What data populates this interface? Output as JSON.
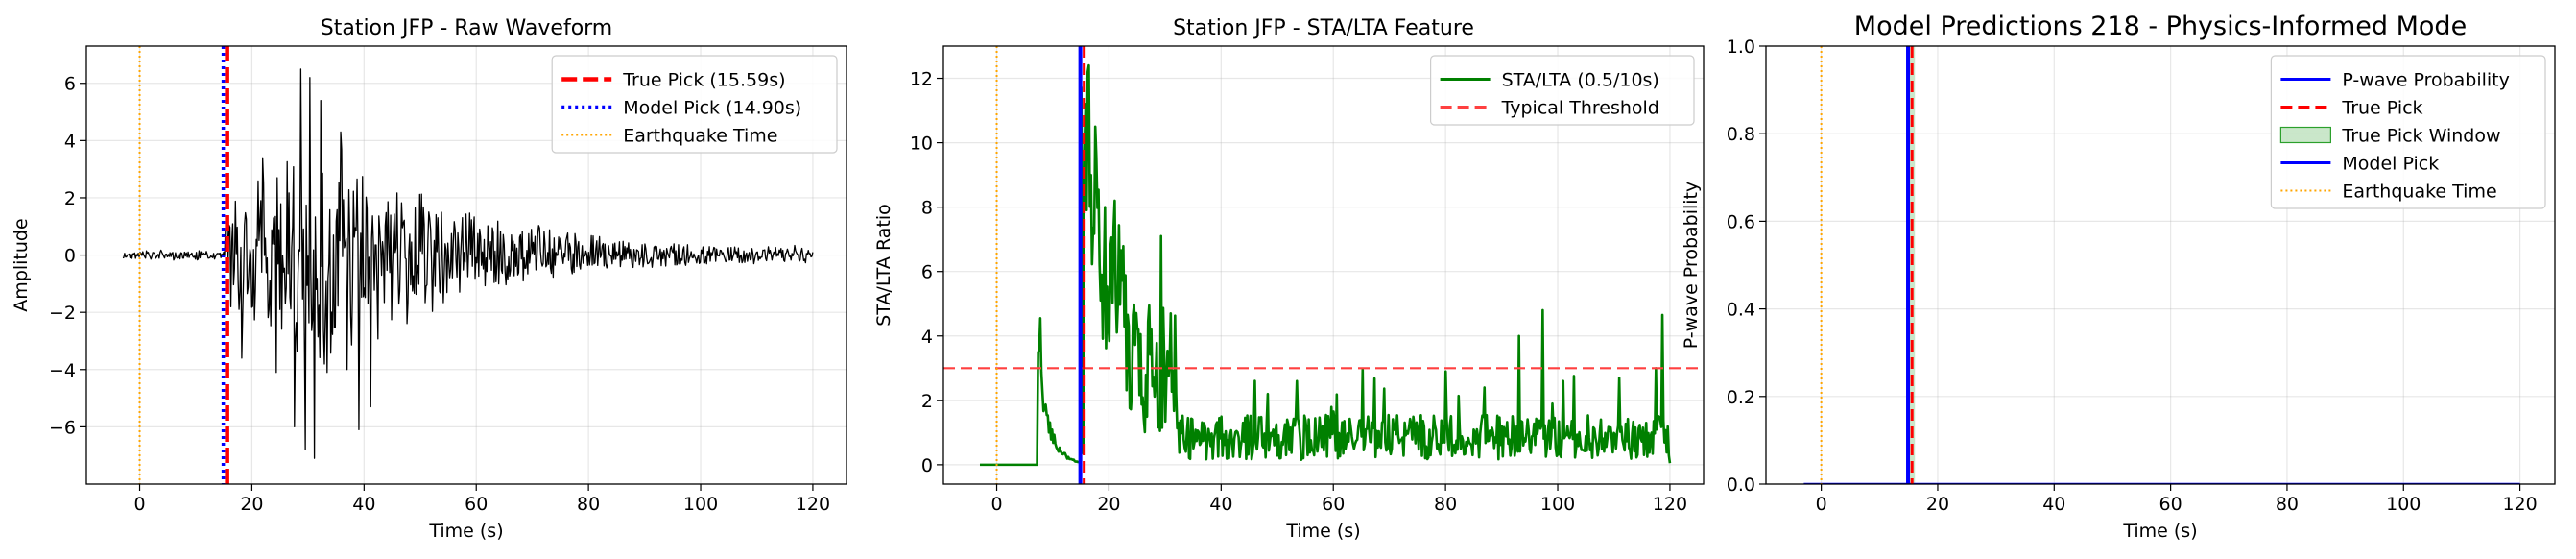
{
  "chart_data": [
    {
      "type": "line",
      "title": "Station JFP - Raw Waveform",
      "xlabel": "Time (s)",
      "ylabel": "Amplitude",
      "xlim": [
        -9.5,
        126
      ],
      "ylim": [
        -8,
        7.3
      ],
      "xticks": [
        0,
        20,
        40,
        60,
        80,
        100,
        120
      ],
      "yticks": [
        -6,
        -4,
        -2,
        0,
        2,
        4,
        6
      ],
      "xtick_labels": [
        "0",
        "20",
        "40",
        "60",
        "80",
        "100",
        "120"
      ],
      "ytick_labels": [
        "−6",
        "−4",
        "−2",
        "0",
        "2",
        "4",
        "6"
      ],
      "grid": true,
      "legend_position": "top-right",
      "series": [
        {
          "name": "Waveform",
          "color": "#000000",
          "generator": "waveform",
          "x_range": [
            -3,
            120
          ]
        }
      ],
      "vlines": [
        {
          "name": "True Pick (15.59s)",
          "x": 15.59,
          "color": "#ff0000",
          "style": "dashed-thick"
        },
        {
          "name": "Model Pick (14.90s)",
          "x": 14.9,
          "color": "#0000ff",
          "style": "dotted"
        },
        {
          "name": "Earthquake Time",
          "x": 0,
          "color": "#ffa500",
          "style": "dotted-thin"
        }
      ],
      "legend": [
        {
          "label": "True Pick (15.59s)",
          "color": "#ff0000",
          "style": "dashed-thick"
        },
        {
          "label": "Model Pick (14.90s)",
          "color": "#0000ff",
          "style": "dotted"
        },
        {
          "label": "Earthquake Time",
          "color": "#ffa500",
          "style": "dotted-thin"
        }
      ]
    },
    {
      "type": "line",
      "title": "Station JFP - STA/LTA Feature",
      "xlabel": "Time (s)",
      "ylabel": "STA/LTA Ratio",
      "xlim": [
        -9.5,
        126
      ],
      "ylim": [
        -0.6,
        13
      ],
      "xticks": [
        0,
        20,
        40,
        60,
        80,
        100,
        120
      ],
      "yticks": [
        0,
        2,
        4,
        6,
        8,
        10,
        12
      ],
      "xtick_labels": [
        "0",
        "20",
        "40",
        "60",
        "80",
        "100",
        "120"
      ],
      "ytick_labels": [
        "0",
        "2",
        "4",
        "6",
        "8",
        "10",
        "12"
      ],
      "grid": true,
      "legend_position": "top-right",
      "series": [
        {
          "name": "STA/LTA (0.5/10s)",
          "color": "#008000",
          "generator": "stalta",
          "x_range": [
            -3,
            120
          ]
        }
      ],
      "hlines": [
        {
          "name": "Typical Threshold",
          "y": 3,
          "color": "#ff4040",
          "style": "dashed"
        }
      ],
      "vlines": [
        {
          "name": "",
          "x": 0,
          "color": "#ffa500",
          "style": "dotted-thin"
        },
        {
          "name": "",
          "x": 14.9,
          "color": "#0000ff",
          "style": "solid-thick"
        },
        {
          "name": "",
          "x": 15.59,
          "color": "#ff0000",
          "style": "dashed"
        }
      ],
      "legend": [
        {
          "label": "STA/LTA (0.5/10s)",
          "color": "#008000",
          "style": "solid"
        },
        {
          "label": "Typical Threshold",
          "color": "#ff4040",
          "style": "dashed"
        }
      ]
    },
    {
      "type": "line",
      "title": "Model Predictions 218 - Physics-Informed Mode",
      "xlabel": "Time (s)",
      "ylabel": "P-wave Probability",
      "xlim": [
        -9.5,
        126
      ],
      "ylim": [
        0,
        1
      ],
      "xticks": [
        0,
        20,
        40,
        60,
        80,
        100,
        120
      ],
      "yticks": [
        0,
        0.2,
        0.4,
        0.6,
        0.8,
        1.0
      ],
      "xtick_labels": [
        "0",
        "20",
        "40",
        "60",
        "80",
        "100",
        "120"
      ],
      "ytick_labels": [
        "0.0",
        "0.2",
        "0.4",
        "0.6",
        "0.8",
        "1.0"
      ],
      "grid": true,
      "legend_position": "top-right",
      "series": [
        {
          "name": "P-wave Probability",
          "color": "#0000ff",
          "x": [
            -3,
            120
          ],
          "y": [
            0.0,
            0.0
          ]
        }
      ],
      "spans": [
        {
          "name": "True Pick Window",
          "x": [
            15.09,
            16.09
          ],
          "color": "#2ca02c",
          "alpha": 0.25
        }
      ],
      "vlines": [
        {
          "name": "True Pick",
          "x": 15.59,
          "color": "#ff0000",
          "style": "dashed"
        },
        {
          "name": "Model Pick",
          "x": 14.9,
          "color": "#0000ff",
          "style": "solid-thick"
        },
        {
          "name": "Earthquake Time",
          "x": 0,
          "color": "#ffa500",
          "style": "dotted-thin"
        }
      ],
      "legend": [
        {
          "label": "P-wave Probability",
          "color": "#0000ff",
          "style": "solid"
        },
        {
          "label": "True Pick",
          "color": "#ff0000",
          "style": "dashed"
        },
        {
          "label": "True Pick Window",
          "color": "#2ca02c",
          "style": "patch"
        },
        {
          "label": "Model Pick",
          "color": "#0000ff",
          "style": "solid"
        },
        {
          "label": "Earthquake Time",
          "color": "#ffa500",
          "style": "dotted-thin"
        }
      ]
    }
  ]
}
